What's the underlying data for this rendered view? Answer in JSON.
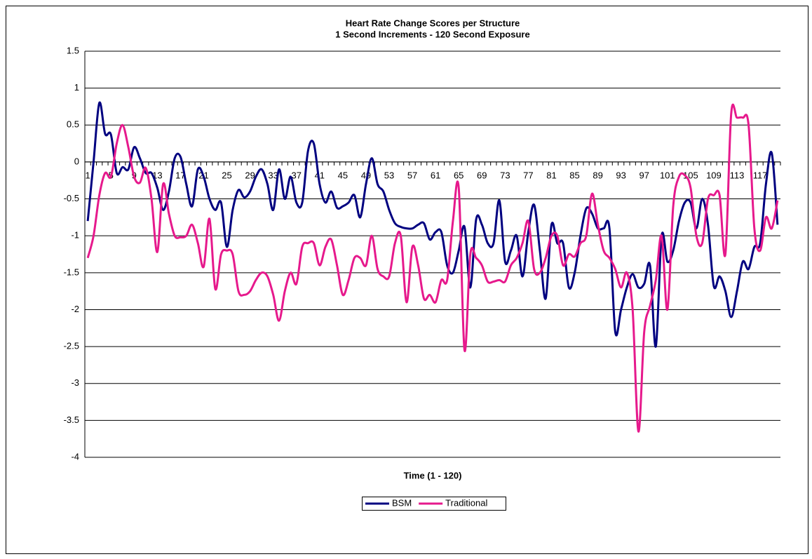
{
  "chart_data": {
    "type": "line",
    "title": "Heart Rate Change Scores per Structure",
    "subtitle": "1 Second Increments - 120 Second Exposure",
    "x_label": "Time (1 - 120)",
    "categories": [
      1,
      null,
      null,
      null,
      5,
      null,
      null,
      null,
      9,
      null,
      null,
      null,
      13,
      null,
      null,
      null,
      17,
      null,
      null,
      null,
      21,
      null,
      null,
      null,
      25,
      null,
      null,
      null,
      29,
      null,
      null,
      null,
      33,
      null,
      null,
      null,
      37,
      null,
      null,
      null,
      41,
      null,
      null,
      null,
      45,
      null,
      null,
      null,
      49,
      null,
      null,
      null,
      53,
      null,
      null,
      null,
      57,
      null,
      null,
      null,
      61,
      null,
      null,
      null,
      65,
      null,
      null,
      null,
      69,
      null,
      null,
      null,
      73,
      null,
      null,
      null,
      77,
      null,
      null,
      null,
      81,
      null,
      null,
      null,
      85,
      null,
      null,
      null,
      89,
      null,
      null,
      null,
      93,
      null,
      null,
      null,
      97,
      null,
      null,
      null,
      101,
      null,
      null,
      null,
      105,
      null,
      null,
      null,
      109,
      null,
      null,
      null,
      113,
      null,
      null,
      null,
      117,
      null,
      null,
      null
    ],
    "series": [
      {
        "name": "BSM",
        "color": "#000080",
        "values": [
          -0.8,
          0.0,
          0.8,
          0.38,
          0.37,
          -0.15,
          -0.07,
          -0.1,
          0.2,
          0.05,
          -0.15,
          -0.15,
          -0.35,
          -0.65,
          -0.4,
          0.05,
          0.07,
          -0.3,
          -0.6,
          -0.1,
          -0.2,
          -0.5,
          -0.65,
          -0.55,
          -1.15,
          -0.65,
          -0.38,
          -0.48,
          -0.4,
          -0.2,
          -0.1,
          -0.3,
          -0.65,
          -0.1,
          -0.5,
          -0.2,
          -0.55,
          -0.55,
          0.15,
          0.25,
          -0.3,
          -0.55,
          -0.4,
          -0.62,
          -0.6,
          -0.55,
          -0.45,
          -0.75,
          -0.3,
          0.05,
          -0.3,
          -0.4,
          -0.65,
          -0.83,
          -0.88,
          -0.9,
          -0.9,
          -0.85,
          -0.83,
          -1.05,
          -0.95,
          -0.95,
          -1.4,
          -1.5,
          -1.2,
          -0.88,
          -1.7,
          -0.78,
          -0.85,
          -1.1,
          -1.1,
          -0.52,
          -1.35,
          -1.2,
          -1.0,
          -1.55,
          -0.95,
          -0.58,
          -1.2,
          -1.85,
          -0.85,
          -1.1,
          -1.1,
          -1.7,
          -1.5,
          -1.0,
          -0.63,
          -0.7,
          -0.9,
          -0.9,
          -0.9,
          -2.3,
          -2.0,
          -1.7,
          -1.52,
          -1.7,
          -1.65,
          -1.4,
          -2.5,
          -1.0,
          -1.35,
          -1.2,
          -0.8,
          -0.55,
          -0.55,
          -0.9,
          -0.5,
          -0.85,
          -1.68,
          -1.55,
          -1.75,
          -2.1,
          -1.75,
          -1.35,
          -1.45,
          -1.15,
          -1.1,
          -0.3,
          0.12,
          -0.85
        ]
      },
      {
        "name": "Traditional",
        "color": "#e6198c",
        "values": [
          -1.3,
          -1.0,
          -0.45,
          -0.15,
          -0.2,
          0.25,
          0.5,
          0.2,
          -0.2,
          -0.28,
          -0.08,
          -0.5,
          -1.22,
          -0.3,
          -0.7,
          -1.0,
          -1.02,
          -1.0,
          -0.85,
          -1.1,
          -1.42,
          -0.77,
          -1.72,
          -1.25,
          -1.2,
          -1.25,
          -1.75,
          -1.8,
          -1.75,
          -1.6,
          -1.5,
          -1.55,
          -1.8,
          -2.15,
          -1.75,
          -1.5,
          -1.65,
          -1.15,
          -1.1,
          -1.1,
          -1.4,
          -1.15,
          -1.05,
          -1.4,
          -1.8,
          -1.6,
          -1.3,
          -1.3,
          -1.4,
          -1.0,
          -1.45,
          -1.55,
          -1.55,
          -1.1,
          -1.0,
          -1.9,
          -1.15,
          -1.4,
          -1.85,
          -1.8,
          -1.9,
          -1.6,
          -1.6,
          -0.8,
          -0.35,
          -2.55,
          -1.25,
          -1.3,
          -1.4,
          -1.62,
          -1.62,
          -1.6,
          -1.62,
          -1.4,
          -1.3,
          -1.1,
          -0.8,
          -1.45,
          -1.5,
          -1.3,
          -1.0,
          -1.0,
          -1.4,
          -1.25,
          -1.28,
          -1.1,
          -1.0,
          -0.43,
          -0.85,
          -1.2,
          -1.3,
          -1.45,
          -1.7,
          -1.5,
          -2.0,
          -3.65,
          -2.3,
          -1.95,
          -1.6,
          -1.0,
          -2.0,
          -0.6,
          -0.2,
          -0.18,
          -0.35,
          -1.0,
          -1.1,
          -0.5,
          -0.45,
          -0.45,
          -1.25,
          0.65,
          0.6,
          0.6,
          0.5,
          -0.9,
          -1.2,
          -0.75,
          -0.9,
          -0.52
        ]
      }
    ],
    "ylim": [
      -4,
      1.5
    ],
    "yticks": [
      1.5,
      1,
      0.5,
      0,
      -0.5,
      -1,
      -1.5,
      -2,
      -2.5,
      -3,
      -3.5,
      -4
    ],
    "grid": true,
    "smooth": true,
    "legend": "bottom"
  }
}
